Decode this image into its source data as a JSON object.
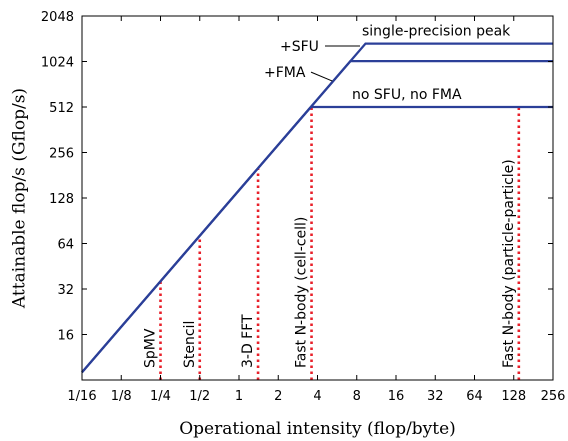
{
  "chart_data": {
    "type": "line",
    "title": "",
    "xlabel": "Operational intensity (flop/byte)",
    "ylabel": "Attainable flop/s (Gflop/s)",
    "x_scale": "log2",
    "y_scale": "log2",
    "xlim": [
      0.0625,
      256
    ],
    "ylim": [
      8,
      2048
    ],
    "x_ticks": [
      {
        "value": 0.0625,
        "label": "1/16"
      },
      {
        "value": 0.125,
        "label": "1/8"
      },
      {
        "value": 0.25,
        "label": "1/4"
      },
      {
        "value": 0.5,
        "label": "1/2"
      },
      {
        "value": 1,
        "label": "1"
      },
      {
        "value": 2,
        "label": "2"
      },
      {
        "value": 4,
        "label": "4"
      },
      {
        "value": 8,
        "label": "8"
      },
      {
        "value": 16,
        "label": "16"
      },
      {
        "value": 32,
        "label": "32"
      },
      {
        "value": 64,
        "label": "64"
      },
      {
        "value": 128,
        "label": "128"
      },
      {
        "value": 256,
        "label": "256"
      }
    ],
    "y_ticks": [
      {
        "value": 16,
        "label": "16"
      },
      {
        "value": 32,
        "label": "32"
      },
      {
        "value": 64,
        "label": "64"
      },
      {
        "value": 128,
        "label": "128"
      },
      {
        "value": 256,
        "label": "256"
      },
      {
        "value": 512,
        "label": "512"
      },
      {
        "value": 1024,
        "label": "1024"
      },
      {
        "value": 2048,
        "label": "2048"
      }
    ],
    "roofline_color": "#2b3f98",
    "kernel_color": "#e8202a",
    "bandwidth_gbps": 144,
    "ceilings": [
      {
        "label": "no SFU, no FMA",
        "peak": 512,
        "x": [
          0.0625,
          3.56,
          256
        ],
        "y": [
          9,
          512,
          512
        ]
      },
      {
        "label": "+FMA",
        "peak": 1030,
        "x": [
          0.0625,
          7.15,
          256
        ],
        "y": [
          9,
          1030,
          1030
        ]
      },
      {
        "label": "single-precision peak",
        "peak": 1345,
        "x": [
          0.0625,
          9.34,
          256
        ],
        "y": [
          9,
          1345,
          1345
        ]
      }
    ],
    "annotations": [
      {
        "text": "single-precision peak"
      },
      {
        "text": "+SFU"
      },
      {
        "text": "+FMA"
      },
      {
        "text": "no SFU, no FMA"
      }
    ],
    "kernels": [
      {
        "name": "SpMV",
        "intensity": 0.25
      },
      {
        "name": "Stencil",
        "intensity": 0.5
      },
      {
        "name": "3-D FFT",
        "intensity": 1.4
      },
      {
        "name": "Fast N-body (cell-cell)",
        "intensity": 3.6
      },
      {
        "name": "Fast N-body (particle-particle)",
        "intensity": 140
      }
    ]
  }
}
